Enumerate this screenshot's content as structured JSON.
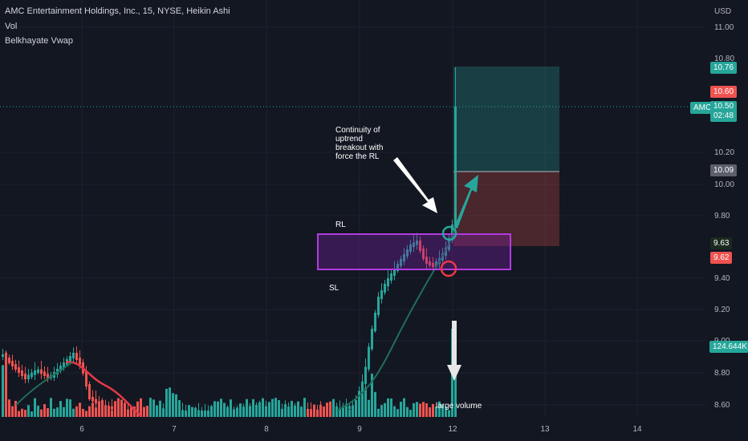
{
  "header": {
    "title": "AMC Entertainment Holdings, Inc., 15, NYSE, Heikin Ashi",
    "indicator_1": "Vol",
    "indicator_2": "Belkhayate Vwap"
  },
  "price_axis": {
    "currency": "USD",
    "ticks": [
      "11.00",
      "10.80",
      "10.20",
      "10.00",
      "9.80",
      "9.40",
      "9.20",
      "9.00",
      "8.80",
      "8.60"
    ]
  },
  "time_axis": {
    "ticks": [
      "6",
      "7",
      "8",
      "9",
      "12",
      "13",
      "14"
    ]
  },
  "tags": {
    "target": "10.76",
    "sl_price": "10.60",
    "symbol": "AMC",
    "last_price": "10.50",
    "countdown": "02:48",
    "entry": "10.09",
    "green_level": "9.63",
    "red_level": "9.62",
    "volume": "124.644K"
  },
  "annotations": {
    "continuity": "Continuity of uptrend breakout with force the RL",
    "rl": "RL",
    "sl": "SL",
    "large_volume": "large volume"
  },
  "colors": {
    "background": "#131722",
    "up": "#26a69a",
    "down": "#ef5350",
    "purple": "#9c27b0",
    "vwap_red": "#e53946",
    "vwap_green": "#1f6e5a"
  }
}
